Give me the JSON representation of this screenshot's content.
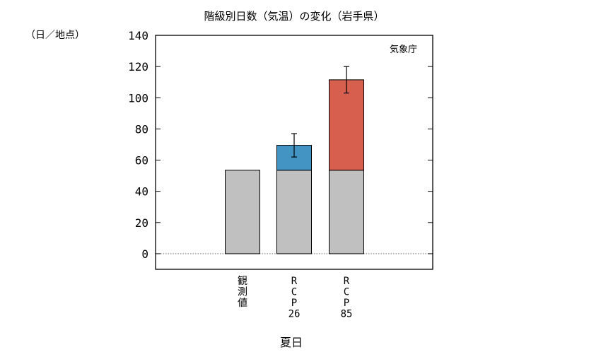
{
  "chart_data": {
    "type": "bar",
    "title": "階級別日数（気温）の変化（岩手県）",
    "unit_label": "（日／地点）",
    "source": "気象庁",
    "xlabel": "夏日",
    "ylim": [
      -10,
      140
    ],
    "yticks": [
      0,
      20,
      40,
      60,
      80,
      100,
      120,
      140
    ],
    "categories": [
      {
        "lines": [
          "観",
          "測",
          "値"
        ]
      },
      {
        "lines": [
          "R",
          "C",
          "P",
          "26"
        ]
      },
      {
        "lines": [
          "R",
          "C",
          "P",
          "85"
        ]
      }
    ],
    "bars": [
      {
        "base": 53.5,
        "increase": 0,
        "error": null
      },
      {
        "base": 53.5,
        "increase": 16.0,
        "error": [
          62.0,
          77.0
        ]
      },
      {
        "base": 53.5,
        "increase": 58.0,
        "error": [
          103.0,
          120.0
        ]
      }
    ],
    "colors": {
      "base": "#c0c0c0",
      "rcp26": "#4393c3",
      "rcp85": "#d6604d"
    }
  }
}
